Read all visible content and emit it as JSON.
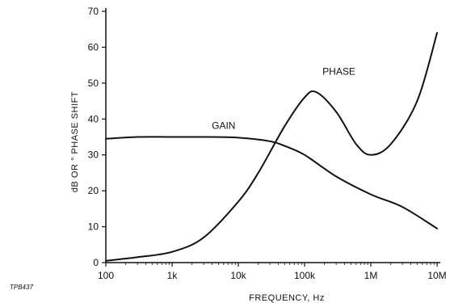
{
  "chart_data": {
    "type": "line",
    "xlabel": "FREQUENCY, Hz",
    "ylabel": "dB OR ° PHASE SHIFT",
    "x_scale": "log",
    "xlim": [
      100,
      10000000
    ],
    "ylim": [
      0,
      70
    ],
    "x_ticks": [
      {
        "value": 100,
        "label": "100"
      },
      {
        "value": 1000,
        "label": "1k"
      },
      {
        "value": 10000,
        "label": "10k"
      },
      {
        "value": 100000,
        "label": "100k"
      },
      {
        "value": 1000000,
        "label": "1M"
      },
      {
        "value": 10000000,
        "label": "10M"
      }
    ],
    "y_ticks": [
      0,
      10,
      20,
      30,
      40,
      50,
      60,
      70
    ],
    "grid": false,
    "series": [
      {
        "name": "GAIN",
        "x": [
          100,
          300,
          1000,
          3000,
          10000,
          30000,
          50000,
          100000,
          300000,
          1000000,
          3000000,
          10000000
        ],
        "y": [
          34.5,
          35,
          35,
          35,
          34.8,
          33.8,
          32.5,
          30,
          24,
          19,
          15.5,
          9.5
        ]
      },
      {
        "name": "PHASE",
        "x": [
          100,
          300,
          1000,
          3000,
          10000,
          20000,
          50000,
          100000,
          150000,
          300000,
          600000,
          1000000,
          2000000,
          5000000,
          10000000
        ],
        "y": [
          0.5,
          1.5,
          3,
          7,
          17,
          25,
          38,
          46,
          47.5,
          42,
          33,
          30,
          33,
          45,
          64
        ]
      }
    ],
    "annotations": [
      "GAIN",
      "PHASE"
    ]
  },
  "figure_id": "TPB437",
  "colors": {
    "line": "#111111",
    "axis": "#111111"
  }
}
